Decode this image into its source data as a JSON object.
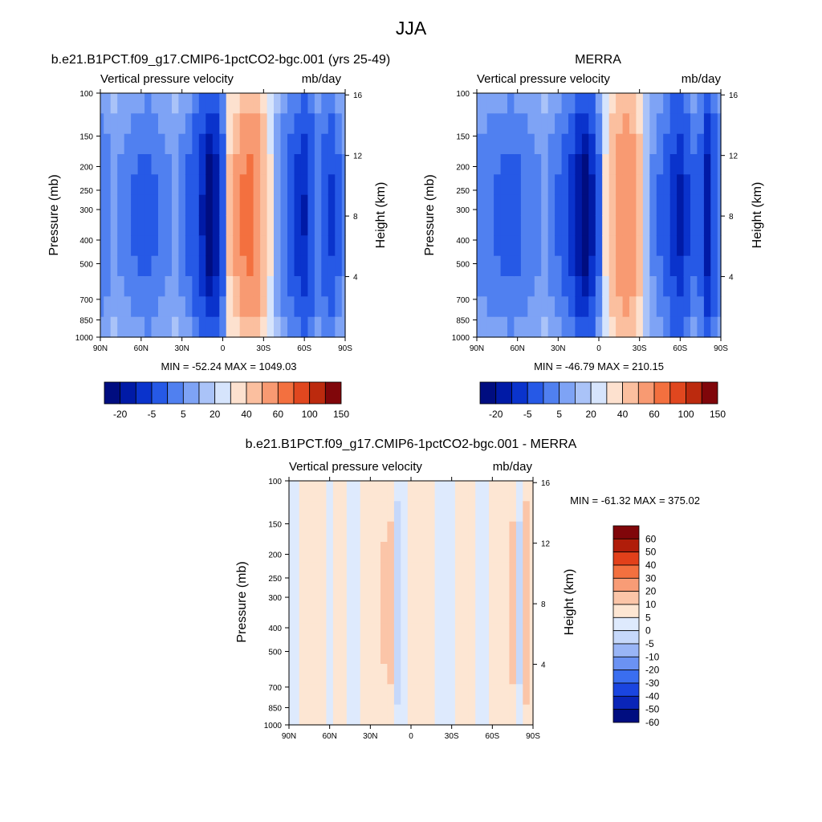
{
  "figure_title": "JJA",
  "colors": {
    "model_scale": [
      "#000d80",
      "#001aa6",
      "#0a33cc",
      "#2659e6",
      "#5080f0",
      "#7ea3f5",
      "#aac3f8",
      "#d6e4fc",
      "#fde1cf",
      "#fbbf9f",
      "#f89a72",
      "#f3703f",
      "#e0471f",
      "#bc2a0e",
      "#80060a"
    ],
    "diff_scale": [
      "#000d80",
      "#0a25b8",
      "#1a45e0",
      "#3a6ef0",
      "#6b92f3",
      "#99b5f6",
      "#c6d8fa",
      "#deeafd",
      "#fde6d3",
      "#fbc5a8",
      "#f89c76",
      "#f3703f",
      "#e2401a",
      "#b01d0a",
      "#80060a"
    ]
  },
  "chart_data": [
    {
      "type": "heatmap",
      "title": "b.e21.B1PCT.f09_g17.CMIP6-1pctCO2-bgc.001 (yrs 25-49)",
      "subtitle_left": "Vertical pressure velocity",
      "subtitle_right": "mb/day",
      "ylabel": "Pressure (mb)",
      "ylabel_right": "Height (km)",
      "xticks": [
        "90N",
        "60N",
        "30N",
        "0",
        "30S",
        "60S",
        "90S"
      ],
      "yticks": [
        "100",
        "150",
        "200",
        "250",
        "300",
        "400",
        "500",
        "700",
        "850",
        "1000"
      ],
      "ylim": [
        100,
        1000
      ],
      "yscale": "log",
      "yticks_right": [
        "16",
        "12",
        "8",
        "4"
      ],
      "stats": "MIN = -52.24  MAX = 1049.03",
      "colorbar_labels": [
        "-20",
        "-5",
        "5",
        "20",
        "40",
        "60",
        "100",
        "150"
      ],
      "bands": [
        {
          "lat": 90,
          "v": -8
        },
        {
          "lat": 85,
          "v": -6
        },
        {
          "lat": 80,
          "v": -4
        },
        {
          "lat": 75,
          "v": -5
        },
        {
          "lat": 70,
          "v": -7
        },
        {
          "lat": 65,
          "v": -9
        },
        {
          "lat": 60,
          "v": -10
        },
        {
          "lat": 55,
          "v": -11
        },
        {
          "lat": 50,
          "v": -9
        },
        {
          "lat": 45,
          "v": -7
        },
        {
          "lat": 40,
          "v": -5
        },
        {
          "lat": 35,
          "v": -3
        },
        {
          "lat": 30,
          "v": -6
        },
        {
          "lat": 25,
          "v": -10
        },
        {
          "lat": 20,
          "v": -15
        },
        {
          "lat": 15,
          "v": -25
        },
        {
          "lat": 10,
          "v": -40
        },
        {
          "lat": 5,
          "v": -30
        },
        {
          "lat": 0,
          "v": -12
        },
        {
          "lat": -5,
          "v": 5
        },
        {
          "lat": -10,
          "v": 10
        },
        {
          "lat": -15,
          "v": 18
        },
        {
          "lat": -20,
          "v": 20
        },
        {
          "lat": -25,
          "v": 15
        },
        {
          "lat": -30,
          "v": 8
        },
        {
          "lat": -35,
          "v": 2
        },
        {
          "lat": -40,
          "v": -4
        },
        {
          "lat": -45,
          "v": -8
        },
        {
          "lat": -50,
          "v": -12
        },
        {
          "lat": -55,
          "v": -20
        },
        {
          "lat": -60,
          "v": -25
        },
        {
          "lat": -65,
          "v": -15
        },
        {
          "lat": -70,
          "v": -8
        },
        {
          "lat": -75,
          "v": -12
        },
        {
          "lat": -80,
          "v": -18
        },
        {
          "lat": -85,
          "v": -10
        },
        {
          "lat": -90,
          "v": -5
        }
      ]
    },
    {
      "type": "heatmap",
      "title": "MERRA",
      "subtitle_left": "Vertical pressure velocity",
      "subtitle_right": "mb/day",
      "ylabel": "Pressure (mb)",
      "ylabel_right": "Height (km)",
      "xticks": [
        "90N",
        "60N",
        "30N",
        "0",
        "30S",
        "60S",
        "90S"
      ],
      "yticks": [
        "100",
        "150",
        "200",
        "250",
        "300",
        "400",
        "500",
        "700",
        "850",
        "1000"
      ],
      "ylim": [
        100,
        1000
      ],
      "yscale": "log",
      "yticks_right": [
        "16",
        "12",
        "8",
        "4"
      ],
      "stats": "MIN = -46.79  MAX = 210.15",
      "colorbar_labels": [
        "-20",
        "-5",
        "5",
        "20",
        "40",
        "60",
        "100",
        "150"
      ],
      "bands": [
        {
          "lat": 90,
          "v": -6
        },
        {
          "lat": 85,
          "v": -7
        },
        {
          "lat": 80,
          "v": -8
        },
        {
          "lat": 75,
          "v": -9
        },
        {
          "lat": 70,
          "v": -10
        },
        {
          "lat": 65,
          "v": -11
        },
        {
          "lat": 60,
          "v": -10
        },
        {
          "lat": 55,
          "v": -8
        },
        {
          "lat": 50,
          "v": -6
        },
        {
          "lat": 45,
          "v": -5
        },
        {
          "lat": 40,
          "v": -4
        },
        {
          "lat": 35,
          "v": -6
        },
        {
          "lat": 30,
          "v": -9
        },
        {
          "lat": 25,
          "v": -14
        },
        {
          "lat": 20,
          "v": -20
        },
        {
          "lat": 15,
          "v": -30
        },
        {
          "lat": 10,
          "v": -40
        },
        {
          "lat": 5,
          "v": -28
        },
        {
          "lat": 0,
          "v": -10
        },
        {
          "lat": -5,
          "v": 2
        },
        {
          "lat": -10,
          "v": 8
        },
        {
          "lat": -15,
          "v": 14
        },
        {
          "lat": -20,
          "v": 16
        },
        {
          "lat": -25,
          "v": 12
        },
        {
          "lat": -30,
          "v": 6
        },
        {
          "lat": -35,
          "v": 0
        },
        {
          "lat": -40,
          "v": -5
        },
        {
          "lat": -45,
          "v": -9
        },
        {
          "lat": -50,
          "v": -14
        },
        {
          "lat": -55,
          "v": -22
        },
        {
          "lat": -60,
          "v": -28
        },
        {
          "lat": -65,
          "v": -18
        },
        {
          "lat": -70,
          "v": -10
        },
        {
          "lat": -75,
          "v": -14
        },
        {
          "lat": -80,
          "v": -30
        },
        {
          "lat": -85,
          "v": -15
        },
        {
          "lat": -90,
          "v": -8
        }
      ]
    },
    {
      "type": "heatmap",
      "title": "b.e21.B1PCT.f09_g17.CMIP6-1pctCO2-bgc.001 - MERRA",
      "subtitle_left": "Vertical pressure velocity",
      "subtitle_right": "mb/day",
      "ylabel": "Pressure (mb)",
      "ylabel_right": "Height (km)",
      "xticks": [
        "90N",
        "60N",
        "30N",
        "0",
        "30S",
        "60S",
        "90S"
      ],
      "yticks": [
        "100",
        "150",
        "200",
        "250",
        "300",
        "400",
        "500",
        "700",
        "850",
        "1000"
      ],
      "ylim": [
        100,
        1000
      ],
      "yscale": "log",
      "yticks_right": [
        "16",
        "12",
        "8",
        "4"
      ],
      "stats": "MIN = -61.32  MAX = 375.02",
      "colorbar_labels": [
        "60",
        "50",
        "40",
        "30",
        "20",
        "10",
        "5",
        "0",
        "-5",
        "-10",
        "-20",
        "-30",
        "-40",
        "-50",
        "-60"
      ],
      "bands": [
        {
          "lat": 90,
          "v": -1
        },
        {
          "lat": 85,
          "v": -2
        },
        {
          "lat": 80,
          "v": 1
        },
        {
          "lat": 75,
          "v": 2
        },
        {
          "lat": 70,
          "v": 1
        },
        {
          "lat": 65,
          "v": 1
        },
        {
          "lat": 60,
          "v": -1
        },
        {
          "lat": 55,
          "v": 1
        },
        {
          "lat": 50,
          "v": 2
        },
        {
          "lat": 45,
          "v": -1
        },
        {
          "lat": 40,
          "v": -2
        },
        {
          "lat": 35,
          "v": 2
        },
        {
          "lat": 30,
          "v": 3
        },
        {
          "lat": 25,
          "v": 3
        },
        {
          "lat": 20,
          "v": 5
        },
        {
          "lat": 15,
          "v": 6
        },
        {
          "lat": 10,
          "v": -8
        },
        {
          "lat": 5,
          "v": -3
        },
        {
          "lat": 0,
          "v": 4
        },
        {
          "lat": -5,
          "v": 2
        },
        {
          "lat": -10,
          "v": 2
        },
        {
          "lat": -15,
          "v": 2
        },
        {
          "lat": -20,
          "v": -1
        },
        {
          "lat": -25,
          "v": -2
        },
        {
          "lat": -30,
          "v": -2
        },
        {
          "lat": -35,
          "v": 2
        },
        {
          "lat": -40,
          "v": 2
        },
        {
          "lat": -45,
          "v": 1
        },
        {
          "lat": -50,
          "v": -1
        },
        {
          "lat": -55,
          "v": -2
        },
        {
          "lat": -60,
          "v": 2
        },
        {
          "lat": -65,
          "v": 1
        },
        {
          "lat": -70,
          "v": 2
        },
        {
          "lat": -75,
          "v": 6
        },
        {
          "lat": -80,
          "v": -6
        },
        {
          "lat": -85,
          "v": 8
        },
        {
          "lat": -90,
          "v": 3
        }
      ]
    }
  ]
}
